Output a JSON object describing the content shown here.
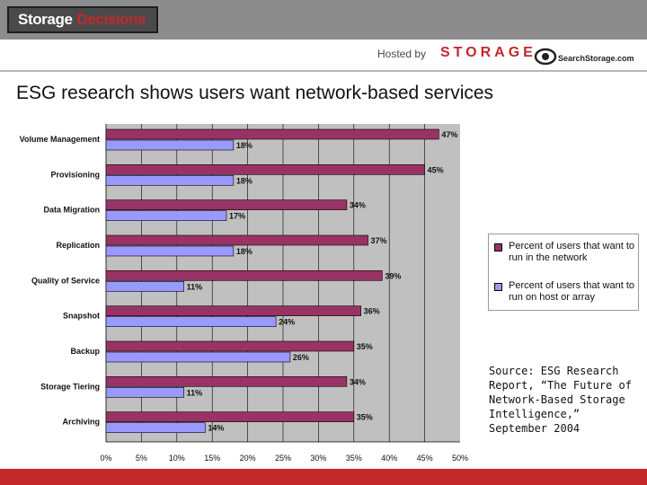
{
  "header": {
    "brand_a": "Storage",
    "brand_b": "Decisions",
    "hosted_by": "Hosted by",
    "storage_logo": "STORAGE",
    "searchstorage_logo": "SearchStorage.com",
    "colors": {
      "brand_red": "#c3282b",
      "header_gray": "#8c8c8c"
    }
  },
  "title": "ESG research shows users want network-based services",
  "source": "Source: ESG Research Report, “The Future of Network-Based Storage Intelligence,” September 2004",
  "chart_data": {
    "type": "bar",
    "orientation": "horizontal",
    "categories": [
      "Volume Management",
      "Provisioning",
      "Data Migration",
      "Replication",
      "Quality of Service",
      "Snapshot",
      "Backup",
      "Storage Tiering",
      "Archiving"
    ],
    "series": [
      {
        "name": "Percent of users that want to run in the network",
        "values": [
          47,
          45,
          34,
          37,
          39,
          36,
          35,
          34,
          35
        ],
        "color": "#993366"
      },
      {
        "name": "Percent of users that want to run on host or array",
        "values": [
          18,
          18,
          17,
          18,
          11,
          24,
          26,
          11,
          14
        ],
        "color": "#9999ff"
      }
    ],
    "value_labels": [
      [
        "47%",
        "45%",
        "34%",
        "37%",
        "39%",
        "36%",
        "35%",
        "34%",
        "35%"
      ],
      [
        "18%",
        "18%",
        "17%",
        "18%",
        "11%",
        "24%",
        "26%",
        "11%",
        "14%"
      ]
    ],
    "xlim": [
      0,
      50
    ],
    "xticks": [
      "0%",
      "5%",
      "10%",
      "15%",
      "20%",
      "25%",
      "30%",
      "35%",
      "40%",
      "45%",
      "50%"
    ],
    "grid": true,
    "plot_background": "#c0c0c0",
    "legend_position": "right"
  }
}
